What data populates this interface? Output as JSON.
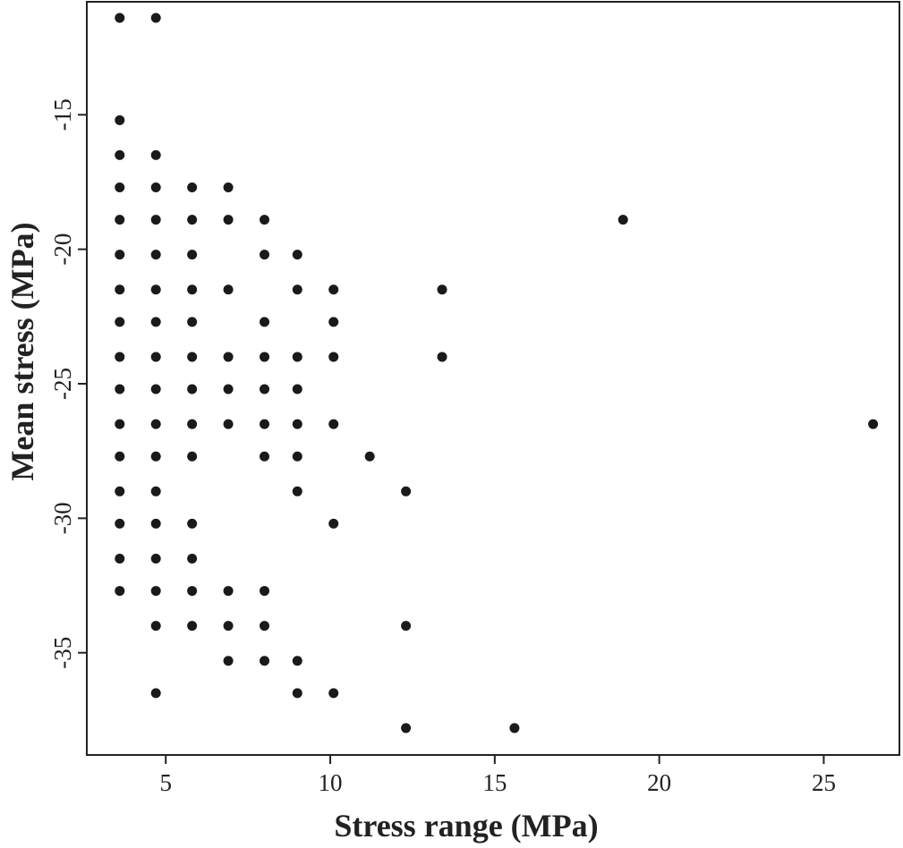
{
  "chart_data": {
    "type": "scatter",
    "title": "",
    "xlabel": "Stress range (MPa)",
    "ylabel": "Mean stress  (MPa)",
    "xlim": [
      2.6,
      27.3
    ],
    "ylim": [
      -38.8,
      -10.8
    ],
    "xticks": [
      5,
      10,
      15,
      20,
      25
    ],
    "yticks": [
      -15,
      -20,
      -25,
      -30,
      -35
    ],
    "grid": false,
    "legend": "none",
    "colors": {
      "marker": "#1a1a1a",
      "axis": "#222222",
      "background": "#ffffff"
    },
    "points": [
      [
        3.6,
        -11.4
      ],
      [
        4.7,
        -11.4
      ],
      [
        3.6,
        -15.2
      ],
      [
        3.6,
        -16.5
      ],
      [
        4.7,
        -16.5
      ],
      [
        3.6,
        -17.7
      ],
      [
        4.7,
        -17.7
      ],
      [
        5.8,
        -17.7
      ],
      [
        6.9,
        -17.7
      ],
      [
        3.6,
        -18.9
      ],
      [
        4.7,
        -18.9
      ],
      [
        5.8,
        -18.9
      ],
      [
        6.9,
        -18.9
      ],
      [
        8.0,
        -18.9
      ],
      [
        18.9,
        -18.9
      ],
      [
        3.6,
        -20.2
      ],
      [
        4.7,
        -20.2
      ],
      [
        5.8,
        -20.2
      ],
      [
        8.0,
        -20.2
      ],
      [
        9.0,
        -20.2
      ],
      [
        3.6,
        -21.5
      ],
      [
        4.7,
        -21.5
      ],
      [
        5.8,
        -21.5
      ],
      [
        6.9,
        -21.5
      ],
      [
        9.0,
        -21.5
      ],
      [
        10.1,
        -21.5
      ],
      [
        13.4,
        -21.5
      ],
      [
        3.6,
        -22.7
      ],
      [
        4.7,
        -22.7
      ],
      [
        5.8,
        -22.7
      ],
      [
        8.0,
        -22.7
      ],
      [
        10.1,
        -22.7
      ],
      [
        3.6,
        -24.0
      ],
      [
        4.7,
        -24.0
      ],
      [
        5.8,
        -24.0
      ],
      [
        6.9,
        -24.0
      ],
      [
        8.0,
        -24.0
      ],
      [
        9.0,
        -24.0
      ],
      [
        10.1,
        -24.0
      ],
      [
        13.4,
        -24.0
      ],
      [
        3.6,
        -25.2
      ],
      [
        4.7,
        -25.2
      ],
      [
        5.8,
        -25.2
      ],
      [
        6.9,
        -25.2
      ],
      [
        8.0,
        -25.2
      ],
      [
        9.0,
        -25.2
      ],
      [
        3.6,
        -26.5
      ],
      [
        4.7,
        -26.5
      ],
      [
        5.8,
        -26.5
      ],
      [
        6.9,
        -26.5
      ],
      [
        8.0,
        -26.5
      ],
      [
        9.0,
        -26.5
      ],
      [
        10.1,
        -26.5
      ],
      [
        26.5,
        -26.5
      ],
      [
        3.6,
        -27.7
      ],
      [
        4.7,
        -27.7
      ],
      [
        5.8,
        -27.7
      ],
      [
        8.0,
        -27.7
      ],
      [
        9.0,
        -27.7
      ],
      [
        11.2,
        -27.7
      ],
      [
        3.6,
        -29.0
      ],
      [
        4.7,
        -29.0
      ],
      [
        9.0,
        -29.0
      ],
      [
        12.3,
        -29.0
      ],
      [
        3.6,
        -30.2
      ],
      [
        4.7,
        -30.2
      ],
      [
        5.8,
        -30.2
      ],
      [
        10.1,
        -30.2
      ],
      [
        3.6,
        -31.5
      ],
      [
        4.7,
        -31.5
      ],
      [
        5.8,
        -31.5
      ],
      [
        3.6,
        -32.7
      ],
      [
        4.7,
        -32.7
      ],
      [
        5.8,
        -32.7
      ],
      [
        6.9,
        -32.7
      ],
      [
        8.0,
        -32.7
      ],
      [
        4.7,
        -34.0
      ],
      [
        5.8,
        -34.0
      ],
      [
        6.9,
        -34.0
      ],
      [
        8.0,
        -34.0
      ],
      [
        12.3,
        -34.0
      ],
      [
        6.9,
        -35.3
      ],
      [
        8.0,
        -35.3
      ],
      [
        9.0,
        -35.3
      ],
      [
        4.7,
        -36.5
      ],
      [
        9.0,
        -36.5
      ],
      [
        10.1,
        -36.5
      ],
      [
        12.3,
        -37.8
      ],
      [
        15.6,
        -37.8
      ]
    ]
  }
}
